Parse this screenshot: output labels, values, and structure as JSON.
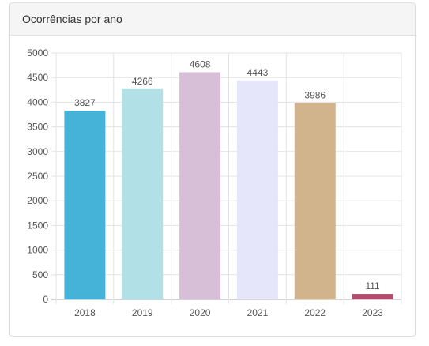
{
  "panel": {
    "title": "Ocorrências por ano"
  },
  "chart_data": {
    "type": "bar",
    "title": "Ocorrências por ano",
    "categories": [
      "2018",
      "2019",
      "2020",
      "2021",
      "2022",
      "2023"
    ],
    "values": [
      3827,
      4266,
      4608,
      4443,
      3986,
      111
    ],
    "colors": [
      "#45b3d8",
      "#b1e0e6",
      "#d8bfd8",
      "#e6e6fa",
      "#d2b48c",
      "#b24d6e"
    ],
    "yticks": [
      0,
      500,
      1000,
      1500,
      2000,
      2500,
      3000,
      3500,
      4000,
      4500,
      5000
    ],
    "ylim": [
      0,
      5000
    ],
    "xlabel": "",
    "ylabel": "",
    "grid": true,
    "data_labels": true
  }
}
